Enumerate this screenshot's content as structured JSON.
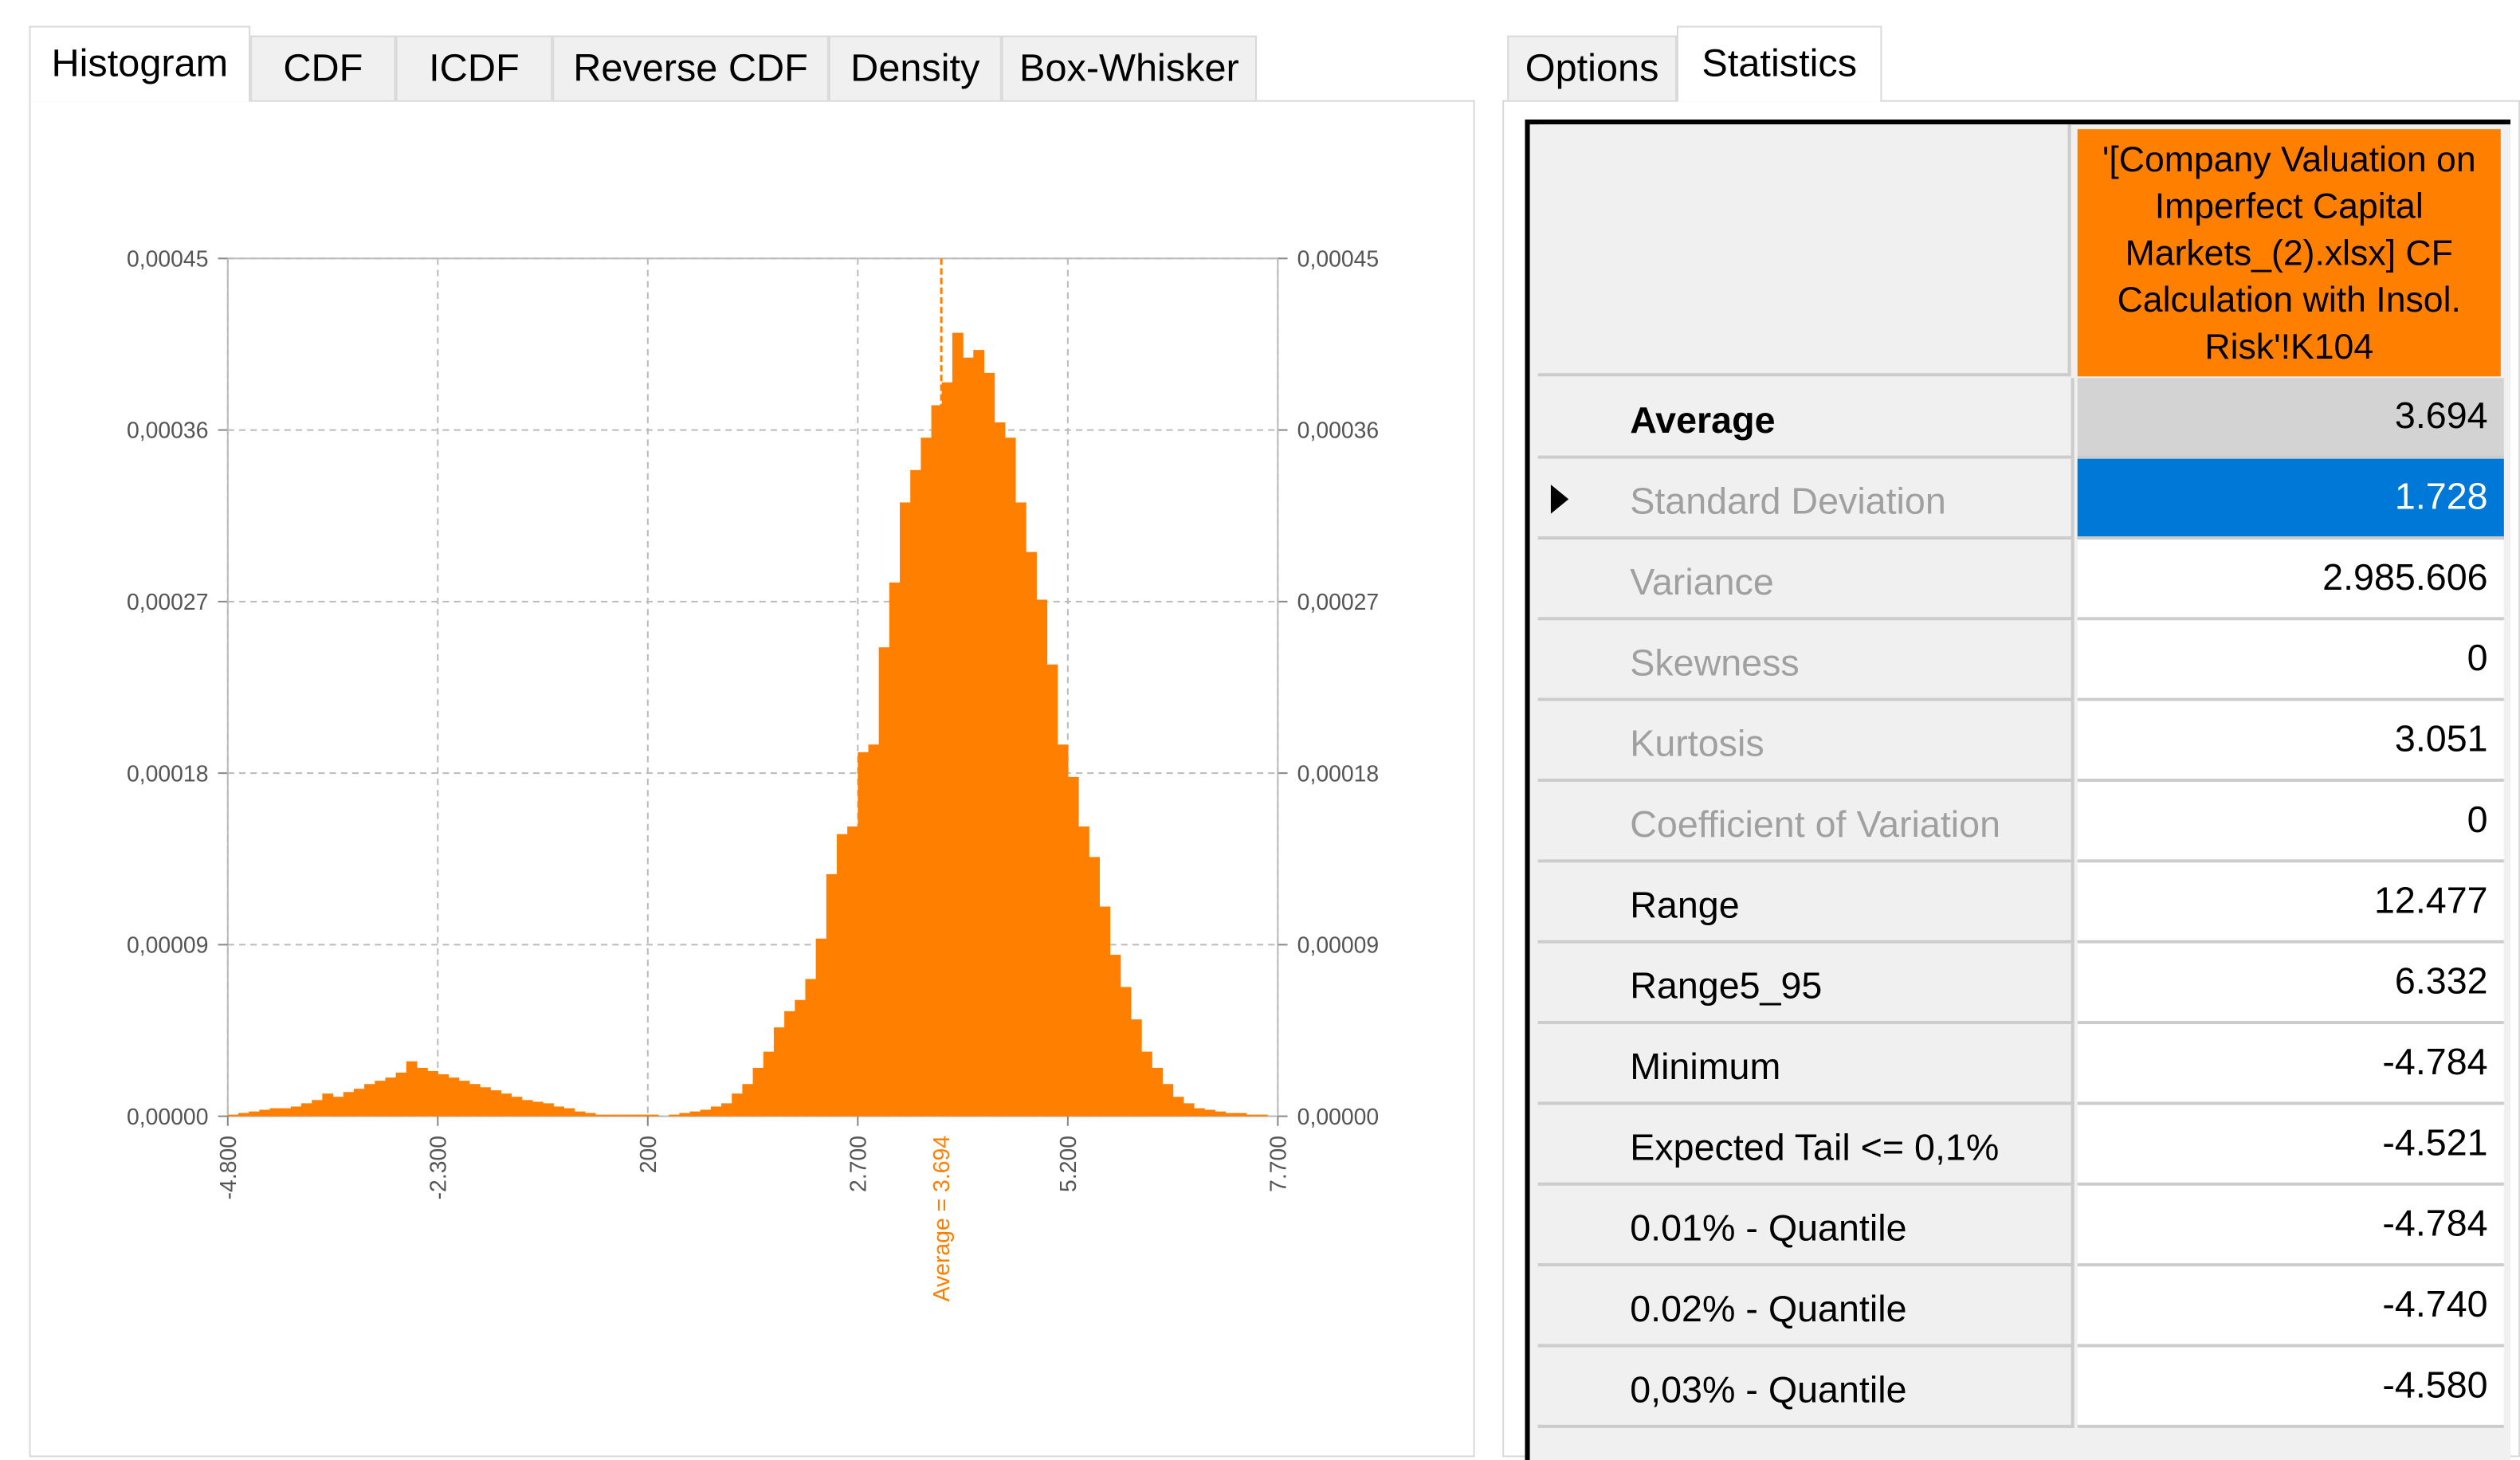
{
  "tabs_left": [
    "Histogram",
    "CDF",
    "ICDF",
    "Reverse CDF",
    "Density",
    "Box-Whisker"
  ],
  "tabs_right": [
    "Options",
    "Statistics"
  ],
  "chart_data": {
    "type": "histogram",
    "color": "#ff8000",
    "grid": true,
    "bins": [
      -4800,
      -4675,
      -4550,
      -4425,
      -4300,
      -4175,
      -4050,
      -3925,
      -3800,
      -3675,
      -3550,
      -3425,
      -3300,
      -3175,
      -3050,
      -2925,
      -2800,
      -2675,
      -2550,
      -2425,
      -2300,
      -2175,
      -2050,
      -1925,
      -1800,
      -1675,
      -1550,
      -1425,
      -1300,
      -1175,
      -1050,
      -925,
      -800,
      -675,
      -550,
      -425,
      -300,
      -175,
      -50,
      75,
      200,
      325,
      450,
      575,
      700,
      825,
      950,
      1075,
      1200,
      1325,
      1450,
      1575,
      1700,
      1825,
      1950,
      2075,
      2200,
      2325,
      2450,
      2575,
      2700,
      2825,
      2950,
      3075,
      3200,
      3325,
      3450,
      3575,
      3700,
      3825,
      3950,
      4075,
      4200,
      4325,
      4450,
      4575,
      4700,
      4825,
      4950,
      5075,
      5200,
      5325,
      5450,
      5575,
      5700,
      5825,
      5950,
      6075,
      6200,
      6325,
      6450,
      6575,
      6700,
      6825,
      6950,
      7075,
      7200,
      7325,
      7450,
      7575,
      7700
    ],
    "values": [
      8.5e-07,
      1.7e-06,
      2.5e-06,
      3.4e-06,
      4.2e-06,
      4.2e-06,
      5.1e-06,
      6.8e-06,
      8.5e-06,
      1.19e-05,
      1.02e-05,
      1.27e-05,
      1.44e-05,
      1.69e-05,
      1.86e-05,
      2.03e-05,
      2.29e-05,
      2.88e-05,
      2.54e-05,
      2.37e-05,
      2.2e-05,
      2.03e-05,
      1.86e-05,
      1.69e-05,
      1.52e-05,
      1.36e-05,
      1.19e-05,
      1.02e-05,
      8.5e-06,
      7.6e-06,
      6.8e-06,
      5.1e-06,
      4.2e-06,
      2.5e-06,
      1.7e-06,
      8.5e-07,
      8.5e-07,
      8.5e-07,
      8.5e-07,
      8.5e-07,
      8.5e-07,
      0,
      8.5e-07,
      1.7e-06,
      2.5e-06,
      3.4e-06,
      5.1e-06,
      6.8e-06,
      1.19e-05,
      1.69e-05,
      2.54e-05,
      3.39e-05,
      4.66e-05,
      5.51e-05,
      6.1e-05,
      7.2e-05,
      9.32e-05,
      0.000127,
      0.000148,
      0.000152,
      0.000191,
      0.000195,
      0.000246,
      0.00028,
      0.000322,
      0.000339,
      0.000356,
      0.000373,
      0.000385,
      0.000411,
      0.000398,
      0.000402,
      0.00039,
      0.000364,
      0.000356,
      0.000322,
      0.000296,
      0.000271,
      0.000237,
      0.000195,
      0.000178,
      0.000152,
      0.000136,
      0.00011,
      8.47e-05,
      6.78e-05,
      5.08e-05,
      3.39e-05,
      2.54e-05,
      1.69e-05,
      1.02e-05,
      6.8e-06,
      4.2e-06,
      3.4e-06,
      2.5e-06,
      1.7e-06,
      1.7e-06,
      8.5e-07,
      8.5e-07,
      0
    ],
    "xlim": [
      -4800,
      7700
    ],
    "xticks": [
      {
        "value": -4800,
        "label": "-4.800"
      },
      {
        "value": -2300,
        "label": "-2.300"
      },
      200,
      {
        "value": 2700,
        "label": "2.700"
      },
      {
        "value": 5200,
        "label": "5.200"
      },
      {
        "value": 7700,
        "label": "7.700"
      }
    ],
    "ylim": [
      0,
      0.00045
    ],
    "yticks": [
      {
        "value": 0,
        "label": "0,00000"
      },
      {
        "value": 9e-05,
        "label": "0,00009"
      },
      {
        "value": 0.00018,
        "label": "0,00018"
      },
      {
        "value": 0.00027,
        "label": "0,00027"
      },
      {
        "value": 0.00036,
        "label": "0,00036"
      },
      {
        "value": 0.00045,
        "label": "0,00045"
      }
    ],
    "average": {
      "value": 3694,
      "label": "Average = 3.694",
      "color": "#ff8000"
    }
  },
  "table": {
    "header": "'[Company Valuation on Imperfect Capital Markets_(2).xlsx] CF Calculation with Insol. Risk'!K104",
    "rows": [
      [
        "Average",
        "3.694"
      ],
      [
        "Standard Deviation",
        "1.728"
      ],
      [
        "Variance",
        "2.985.606"
      ],
      [
        "Skewness",
        "0"
      ],
      [
        "Kurtosis",
        "3.051"
      ],
      [
        "Coefficient of Variation",
        "0"
      ],
      [
        "Range",
        "12.477"
      ],
      [
        "Range5_95",
        "6.332"
      ],
      [
        "Minimum",
        "-4.784"
      ],
      [
        "Expected Tail <= 0,1%",
        "-4.521"
      ],
      [
        "0.01% - Quantile",
        "-4.784"
      ],
      [
        "0.02% - Quantile",
        "-4.740"
      ],
      [
        "0,03% - Quantile",
        "-4.580"
      ]
    ]
  }
}
